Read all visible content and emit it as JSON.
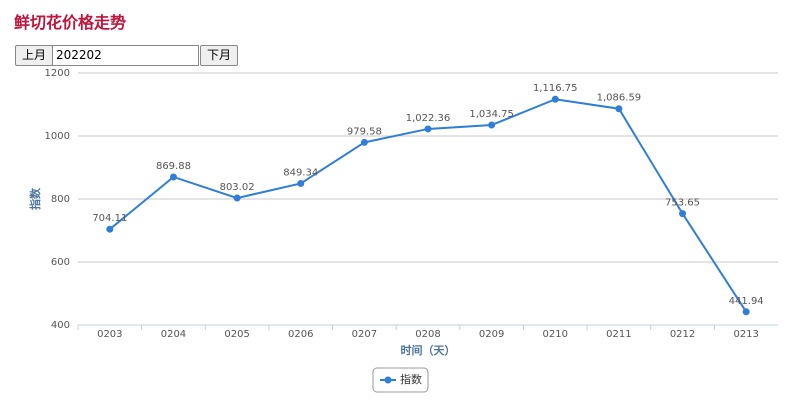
{
  "header": {
    "title": "鲜切花价格走势"
  },
  "controls": {
    "prev": "上月",
    "month": "202202",
    "next": "下月"
  },
  "chart_data": {
    "type": "line",
    "x_label": "时间（天）",
    "y_label": "指数",
    "categories": [
      "0203",
      "0204",
      "0205",
      "0206",
      "0207",
      "0208",
      "0209",
      "0210",
      "0211",
      "0212",
      "0213"
    ],
    "series": [
      {
        "name": "指数",
        "color": "#2f7ed8",
        "values": [
          704.11,
          869.88,
          803.02,
          849.34,
          979.58,
          1022.36,
          1034.75,
          1116.75,
          1086.59,
          753.65,
          441.94
        ],
        "value_labels": [
          "704.11",
          "869.88",
          "803.02",
          "849.34",
          "979.58",
          "1,022.36",
          "1,034.75",
          "1,116.75",
          "1,086.59",
          "753.65",
          "441.94"
        ]
      }
    ],
    "ylim": [
      400,
      1200
    ],
    "yticks": [
      400,
      600,
      800,
      1000,
      1200
    ],
    "grid": true,
    "legend": "bottom"
  }
}
